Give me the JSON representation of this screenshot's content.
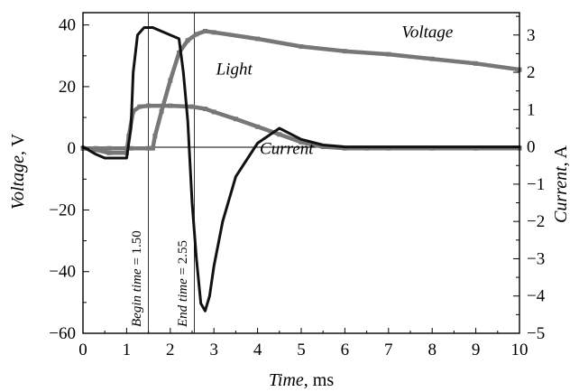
{
  "chart_data": {
    "type": "line",
    "xlabel": {
      "italic": "Time",
      "rest": ", ms"
    },
    "ylabel_left": {
      "italic": "Voltage",
      "rest": ", V"
    },
    "ylabel_right": {
      "italic": "Current",
      "rest": ", A"
    },
    "xlim": [
      0,
      10
    ],
    "ylim_left": [
      -60,
      44
    ],
    "ylim_right": [
      -5,
      3.6
    ],
    "x_ticks": [
      "0",
      "1",
      "2",
      "3",
      "4",
      "5",
      "6",
      "7",
      "8",
      "9",
      "10"
    ],
    "y_left_ticks": [
      "40",
      "20",
      "0",
      "-20",
      "-40",
      "-60"
    ],
    "y_right_ticks": [
      "3",
      "2",
      "1",
      "0",
      "-1",
      "-2",
      "-3",
      "-4",
      "-5"
    ],
    "grid": false,
    "colors": {
      "voltage": "#777777",
      "light": "#777777",
      "current": "#111111",
      "axes": "#000000"
    },
    "markers": [
      {
        "x": 1.5,
        "label_italic": "Begin time",
        "label_rest": " = 1.50"
      },
      {
        "x": 2.55,
        "label_italic": "End time",
        "label_rest": " = 2.55"
      }
    ],
    "series": [
      {
        "name": "Voltage",
        "axis": "left",
        "x": [
          0,
          0.3,
          0.6,
          1.0,
          1.1,
          1.5,
          1.6,
          1.65,
          1.8,
          2.0,
          2.2,
          2.4,
          2.6,
          2.8,
          3.0,
          4.0,
          5.0,
          6.0,
          7.0,
          8.0,
          9.0,
          10.0
        ],
        "y": [
          0,
          0,
          0,
          0,
          0,
          0,
          0,
          4,
          12,
          22,
          31,
          35,
          37,
          38,
          37.6,
          35.5,
          33,
          31.5,
          30.5,
          29,
          27.5,
          25.5
        ]
      },
      {
        "name": "Light",
        "axis": "left",
        "x": [
          0,
          0.3,
          0.6,
          1.0,
          1.05,
          1.15,
          1.3,
          1.5,
          2.0,
          2.5,
          2.8,
          3.0,
          3.5,
          4.0,
          4.5,
          5.0,
          5.5,
          6.0,
          6.5,
          7.0,
          8.0,
          9.0,
          10.0
        ],
        "y": [
          0,
          -0.5,
          -1.5,
          -1.5,
          4,
          12,
          13.5,
          13.8,
          13.8,
          13.5,
          12.8,
          11.8,
          9.5,
          7,
          4.5,
          2,
          0.5,
          0,
          0,
          0,
          0,
          0,
          0
        ]
      },
      {
        "name": "Current",
        "axis": "right",
        "x": [
          0,
          0.3,
          0.5,
          1.0,
          1.1,
          1.15,
          1.25,
          1.4,
          1.6,
          1.8,
          2.0,
          2.2,
          2.3,
          2.4,
          2.5,
          2.6,
          2.7,
          2.8,
          2.9,
          3.0,
          3.2,
          3.5,
          4.0,
          4.5,
          5.0,
          5.5,
          6.0,
          7.0,
          8.0,
          9.0,
          10.0
        ],
        "y": [
          0,
          -0.2,
          -0.3,
          -0.3,
          0.5,
          2.0,
          3.0,
          3.2,
          3.2,
          3.1,
          3.0,
          2.9,
          2.0,
          0.7,
          -1.5,
          -3.0,
          -4.2,
          -4.4,
          -4.0,
          -3.2,
          -2.0,
          -0.8,
          0.1,
          0.5,
          0.2,
          0.05,
          0,
          0,
          0,
          0,
          0
        ]
      }
    ],
    "annotations": [
      {
        "text": "Voltage",
        "x": 7.3,
        "y": 36
      },
      {
        "text": "Light",
        "x": 3.05,
        "y": 24
      },
      {
        "text": "Current",
        "x": 4.05,
        "y": -1.8
      }
    ]
  }
}
